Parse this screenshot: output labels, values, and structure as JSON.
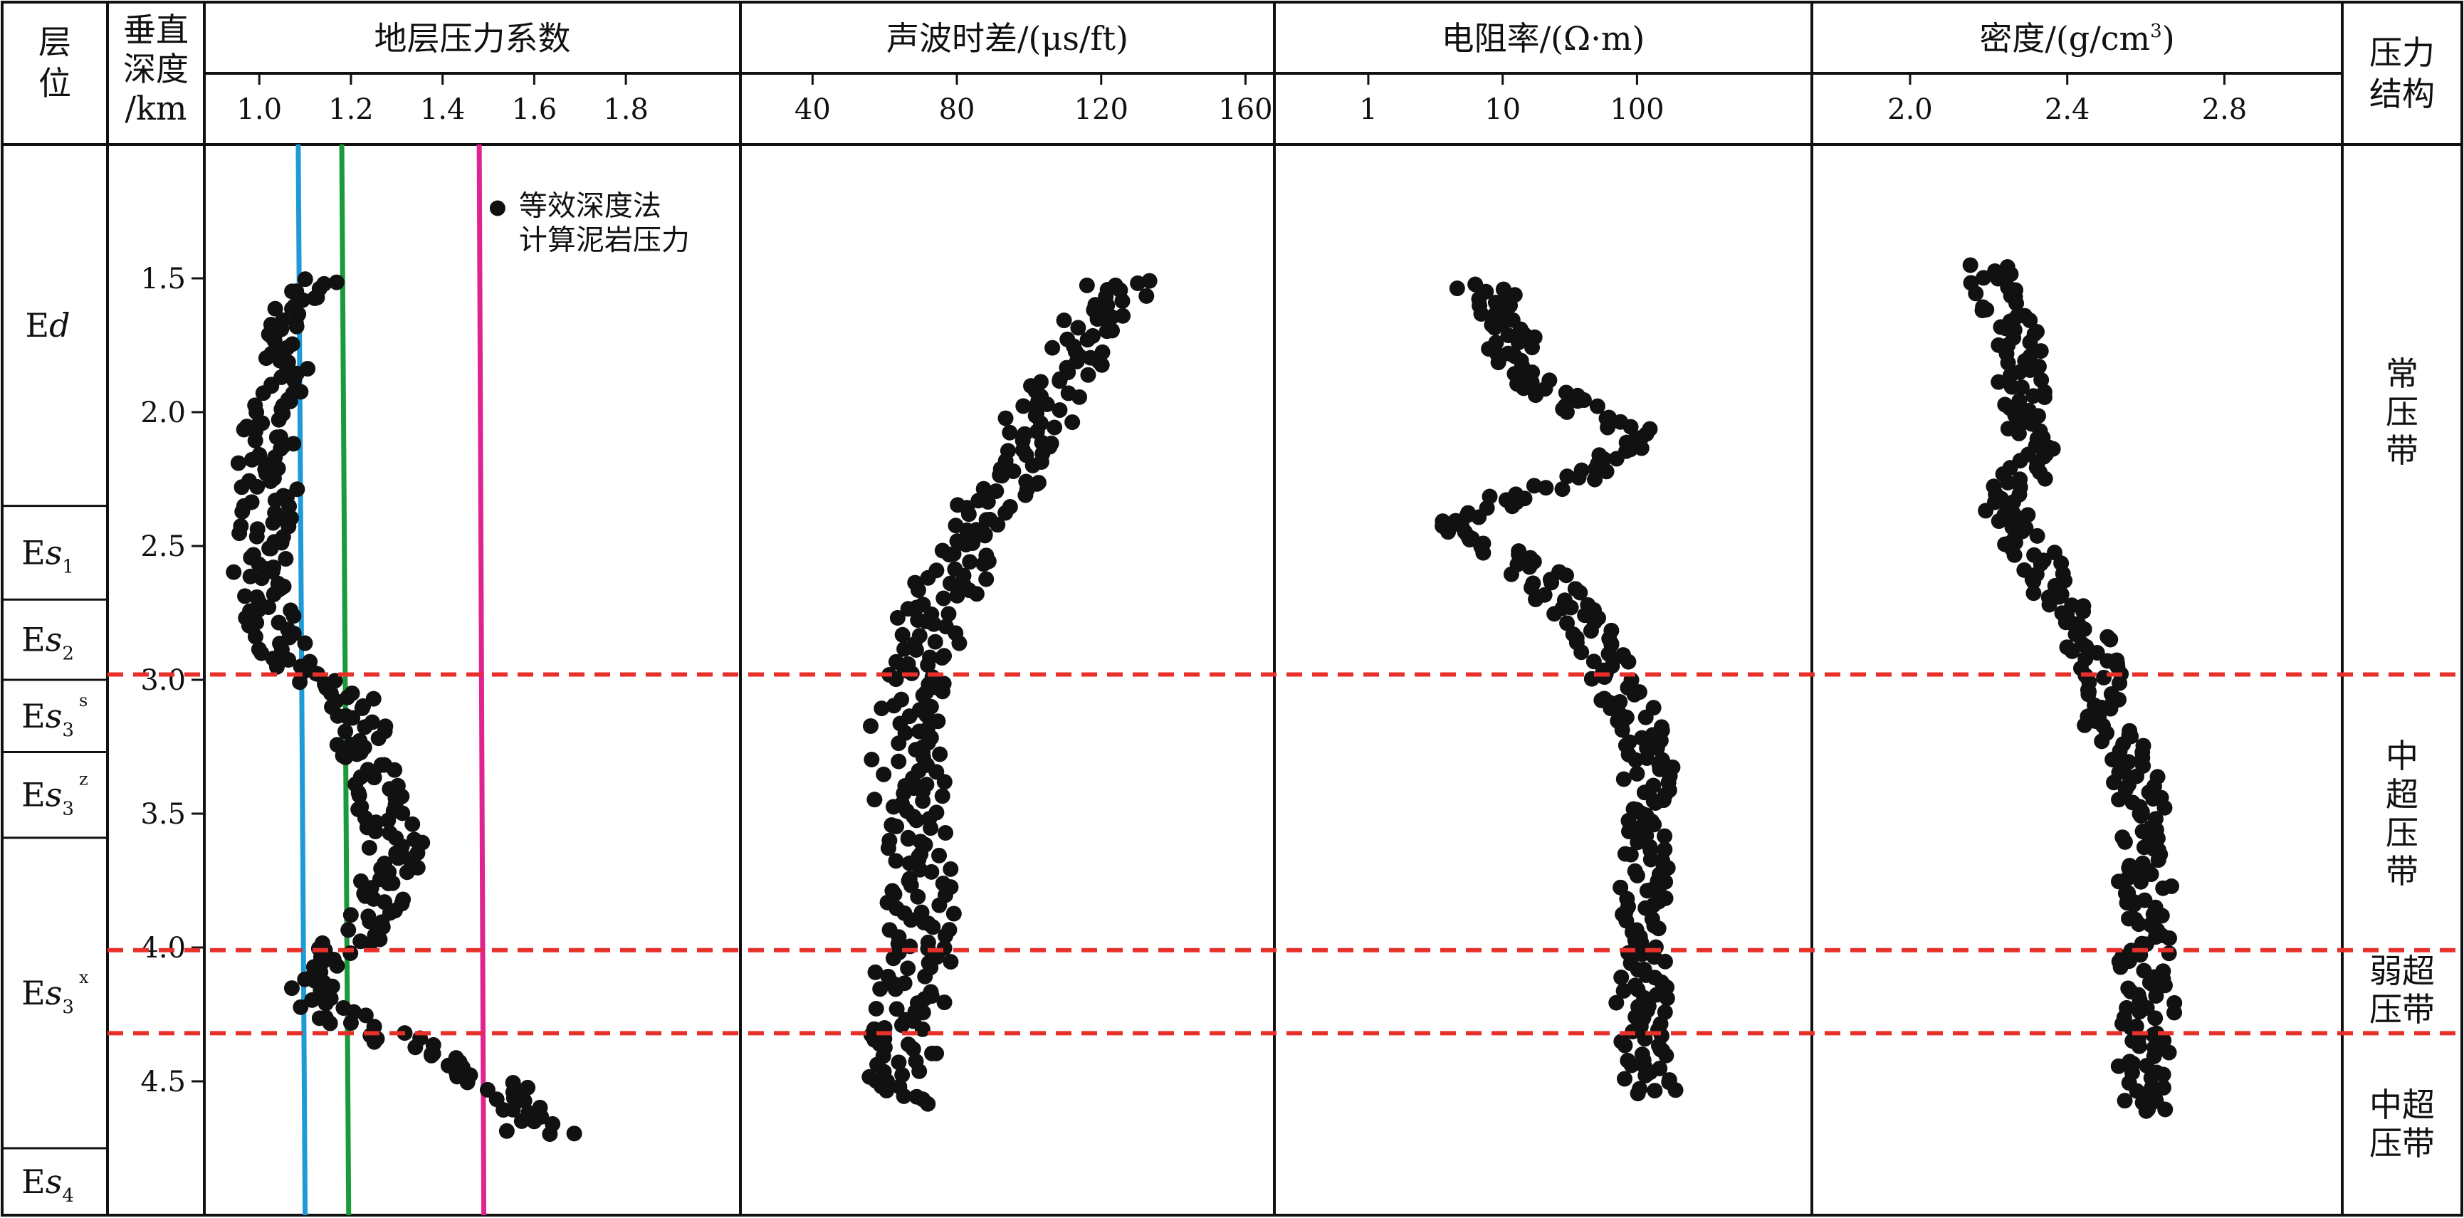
{
  "headers": {
    "stratum": "层位",
    "depth": [
      "垂直",
      "深度",
      "/km"
    ],
    "pressure_structure": [
      "压力",
      "结构"
    ]
  },
  "depth_axis": {
    "min": 1.0,
    "max": 5.0,
    "ticks": [
      "1.5",
      "2.0",
      "2.5",
      "3.0",
      "3.5",
      "4.0",
      "4.5"
    ]
  },
  "strata": [
    {
      "prefix": "E",
      "italic": "d",
      "sub": "",
      "sup": "",
      "top": 1.0,
      "bottom": 2.35
    },
    {
      "prefix": "E",
      "italic": "s",
      "sub": "1",
      "sup": "",
      "top": 2.35,
      "bottom": 2.7
    },
    {
      "prefix": "E",
      "italic": "s",
      "sub": "2",
      "sup": "",
      "top": 2.7,
      "bottom": 3.0
    },
    {
      "prefix": "E",
      "italic": "s",
      "sub": "3",
      "sup": "s",
      "top": 3.0,
      "bottom": 3.27
    },
    {
      "prefix": "E",
      "italic": "s",
      "sub": "3",
      "sup": "z",
      "top": 3.27,
      "bottom": 3.59
    },
    {
      "prefix": "E",
      "italic": "s",
      "sub": "3",
      "sup": "x",
      "top": 3.59,
      "bottom": 4.75
    },
    {
      "prefix": "E",
      "italic": "s",
      "sub": "4",
      "sup": "",
      "top": 4.75,
      "bottom": 5.0
    }
  ],
  "pressure_zones": [
    {
      "lines": [
        "常",
        "压",
        "带"
      ],
      "center": 2.0
    },
    {
      "lines": [
        "中",
        "超",
        "压",
        "带"
      ],
      "center": 3.5
    },
    {
      "lines": [
        "弱超",
        "压带"
      ],
      "center": 4.16
    },
    {
      "lines": [
        "中超",
        "压带"
      ],
      "center": 4.66
    }
  ],
  "zone_boundaries": [
    2.98,
    4.01,
    4.32
  ],
  "colors": {
    "boundary": "#e8302a",
    "points": "#111111",
    "line_blue": "#1e9bd7",
    "line_green": "#1a9a3a",
    "line_magenta": "#e0248f"
  },
  "chart_data": [
    {
      "type": "scatter",
      "title": "地层压力系数",
      "xlim": [
        0.88,
        2.05
      ],
      "xticks": [
        "1.0",
        "1.2",
        "1.4",
        "1.6",
        "1.8"
      ],
      "legend": "等效深度法\n计算泥岩压力",
      "ref_lines": [
        {
          "x0": 1.085,
          "x1": 1.1,
          "color": "#1e9bd7"
        },
        {
          "x0": 1.18,
          "x1": 1.195,
          "color": "#1a9a3a"
        },
        {
          "x0": 1.48,
          "x1": 1.49,
          "color": "#e0248f"
        }
      ],
      "trend": [
        [
          1.5,
          1.12
        ],
        [
          1.7,
          1.06
        ],
        [
          2.0,
          1.03
        ],
        [
          2.3,
          1.02
        ],
        [
          2.6,
          1.01
        ],
        [
          2.8,
          1.03
        ],
        [
          2.97,
          1.1
        ],
        [
          3.1,
          1.2
        ],
        [
          3.3,
          1.24
        ],
        [
          3.5,
          1.27
        ],
        [
          3.7,
          1.29
        ],
        [
          3.9,
          1.26
        ],
        [
          4.05,
          1.15
        ],
        [
          4.2,
          1.12
        ],
        [
          4.3,
          1.25
        ],
        [
          4.4,
          1.38
        ],
        [
          4.5,
          1.5
        ],
        [
          4.6,
          1.58
        ],
        [
          4.7,
          1.62
        ]
      ],
      "spread": [
        0.06,
        0.035
      ]
    },
    {
      "type": "scatter",
      "title": "声波时差/(μs/ft)",
      "xlim": [
        20,
        168
      ],
      "xticks": [
        "40",
        "80",
        "120",
        "160"
      ],
      "trend": [
        [
          1.5,
          125
        ],
        [
          1.7,
          118
        ],
        [
          1.9,
          108
        ],
        [
          2.1,
          100
        ],
        [
          2.3,
          92
        ],
        [
          2.5,
          85
        ],
        [
          2.7,
          76
        ],
        [
          2.9,
          70
        ],
        [
          3.1,
          67
        ],
        [
          3.3,
          66
        ],
        [
          3.5,
          68
        ],
        [
          3.7,
          72
        ],
        [
          3.9,
          70
        ],
        [
          4.1,
          68
        ],
        [
          4.3,
          65
        ],
        [
          4.45,
          64
        ],
        [
          4.58,
          62
        ]
      ],
      "spread": [
        9,
        5
      ]
    },
    {
      "type": "scatter",
      "title": "电阻率/(Ω·m)",
      "log": true,
      "xlim": [
        0.2,
        2000
      ],
      "xticks": [
        "1",
        "10",
        "100"
      ],
      "tick_values": [
        1,
        10,
        100
      ],
      "trend": [
        [
          1.52,
          7
        ],
        [
          1.7,
          11
        ],
        [
          1.9,
          16
        ],
        [
          2.0,
          40
        ],
        [
          2.08,
          100
        ],
        [
          2.2,
          65
        ],
        [
          2.3,
          14
        ],
        [
          2.38,
          4
        ],
        [
          2.5,
          7
        ],
        [
          2.62,
          20
        ],
        [
          2.8,
          40
        ],
        [
          3.0,
          70
        ],
        [
          3.2,
          110
        ],
        [
          3.5,
          120
        ],
        [
          3.8,
          110
        ],
        [
          4.0,
          100
        ],
        [
          4.3,
          110
        ],
        [
          4.55,
          130
        ]
      ],
      "spread": [
        0.18,
        0.08
      ]
    },
    {
      "type": "scatter",
      "title": "密度/(g/cm",
      "title_sup": "3",
      "title_end": ")",
      "xlim": [
        1.75,
        3.1
      ],
      "xticks": [
        "2.0",
        "2.4",
        "2.8"
      ],
      "trend": [
        [
          1.45,
          2.18
        ],
        [
          1.7,
          2.26
        ],
        [
          1.95,
          2.31
        ],
        [
          2.2,
          2.3
        ],
        [
          2.4,
          2.24
        ],
        [
          2.6,
          2.34
        ],
        [
          2.8,
          2.45
        ],
        [
          3.0,
          2.48
        ],
        [
          3.2,
          2.52
        ],
        [
          3.5,
          2.6
        ],
        [
          3.8,
          2.6
        ],
        [
          4.1,
          2.6
        ],
        [
          4.4,
          2.6
        ],
        [
          4.62,
          2.6
        ]
      ],
      "spread": [
        0.06,
        0.035
      ]
    }
  ]
}
